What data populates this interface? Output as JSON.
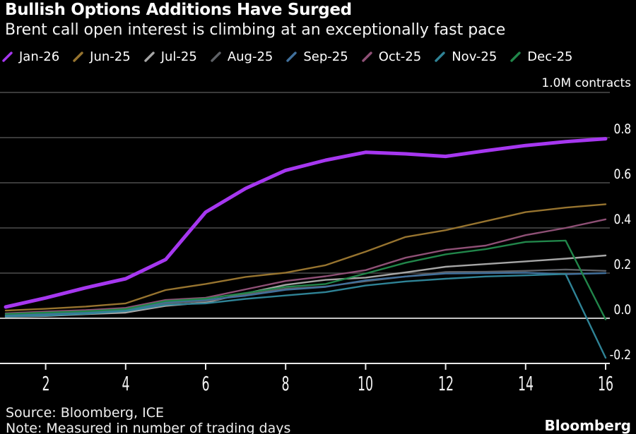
{
  "header": {
    "title": "Bullish Options Additions Have Surged",
    "subtitle": "Brent call open interest is climbing at an exceptionally fast pace"
  },
  "colors": {
    "background": "#000000",
    "text": "#FFFFFF",
    "gridline": "#4D4D4D",
    "zero_line": "#C4C4C4",
    "axis_line": "#E9E9E9"
  },
  "chart_data": {
    "type": "line",
    "title": "Bullish Options Additions Have Surged",
    "subtitle": "Brent call open interest is climbing at an exceptionally fast pace",
    "unit_label": "1.0M contracts",
    "legend_position": "top",
    "grid": "horizontal",
    "ylim": [
      -0.2,
      1.0
    ],
    "x": [
      1,
      2,
      3,
      4,
      5,
      6,
      7,
      8,
      9,
      10,
      11,
      12,
      13,
      14,
      15,
      16
    ],
    "x_ticks": [
      2,
      4,
      6,
      8,
      10,
      12,
      14,
      16
    ],
    "y_ticks": [
      {
        "value": 1.0,
        "label": "1.0M contracts"
      },
      {
        "value": 0.8,
        "label": "0.8"
      },
      {
        "value": 0.6,
        "label": "0.6"
      },
      {
        "value": 0.4,
        "label": "0.4"
      },
      {
        "value": 0.2,
        "label": "0.2"
      },
      {
        "value": 0.0,
        "label": "0.0"
      },
      {
        "value": -0.2,
        "label": "-0.2"
      }
    ],
    "series": [
      {
        "name": "Jan-26",
        "color": "#A637F0",
        "emphasized": true,
        "values": [
          0.05,
          0.09,
          0.135,
          0.175,
          0.26,
          0.47,
          0.575,
          0.655,
          0.7,
          0.735,
          0.728,
          0.717,
          0.742,
          0.765,
          0.782,
          0.795
        ]
      },
      {
        "name": "Jun-25",
        "color": "#97742F",
        "emphasized": false,
        "values": [
          0.034,
          0.042,
          0.052,
          0.066,
          0.125,
          0.152,
          0.183,
          0.202,
          0.235,
          0.295,
          0.36,
          0.39,
          0.43,
          0.47,
          0.49,
          0.505
        ]
      },
      {
        "name": "Jul-25",
        "color": "#A6A6A6",
        "emphasized": false,
        "values": [
          0.007,
          0.01,
          0.018,
          0.025,
          0.055,
          0.07,
          0.11,
          0.148,
          0.17,
          0.18,
          0.203,
          0.228,
          0.24,
          0.252,
          0.264,
          0.278
        ]
      },
      {
        "name": "Aug-25",
        "color": "#5E6166",
        "emphasized": false,
        "values": [
          0.011,
          0.015,
          0.021,
          0.034,
          0.066,
          0.076,
          0.105,
          0.131,
          0.141,
          0.164,
          0.185,
          0.205,
          0.206,
          0.21,
          0.216,
          0.21
        ]
      },
      {
        "name": "Sep-25",
        "color": "#41709C",
        "emphasized": false,
        "values": [
          0.013,
          0.018,
          0.025,
          0.035,
          0.071,
          0.081,
          0.1,
          0.126,
          0.139,
          0.168,
          0.185,
          0.198,
          0.2,
          0.202,
          0.195,
          0.2
        ]
      },
      {
        "name": "Oct-25",
        "color": "#8F5076",
        "emphasized": false,
        "values": [
          0.022,
          0.03,
          0.036,
          0.046,
          0.081,
          0.091,
          0.128,
          0.165,
          0.186,
          0.213,
          0.268,
          0.303,
          0.322,
          0.368,
          0.4,
          0.438
        ]
      },
      {
        "name": "Nov-25",
        "color": "#2F8396",
        "emphasized": false,
        "values": [
          0.008,
          0.012,
          0.02,
          0.032,
          0.06,
          0.066,
          0.086,
          0.101,
          0.116,
          0.145,
          0.163,
          0.175,
          0.185,
          0.19,
          0.196,
          -0.175
        ]
      },
      {
        "name": "Dec-25",
        "color": "#21864A",
        "emphasized": false,
        "values": [
          0.019,
          0.025,
          0.031,
          0.041,
          0.076,
          0.087,
          0.112,
          0.139,
          0.152,
          0.198,
          0.246,
          0.283,
          0.306,
          0.338,
          0.344,
          -0.005
        ]
      }
    ]
  },
  "footer": {
    "source": "Source: Bloomberg, ICE",
    "note": "Note: Measured in number of trading days",
    "brand": "Bloomberg"
  }
}
